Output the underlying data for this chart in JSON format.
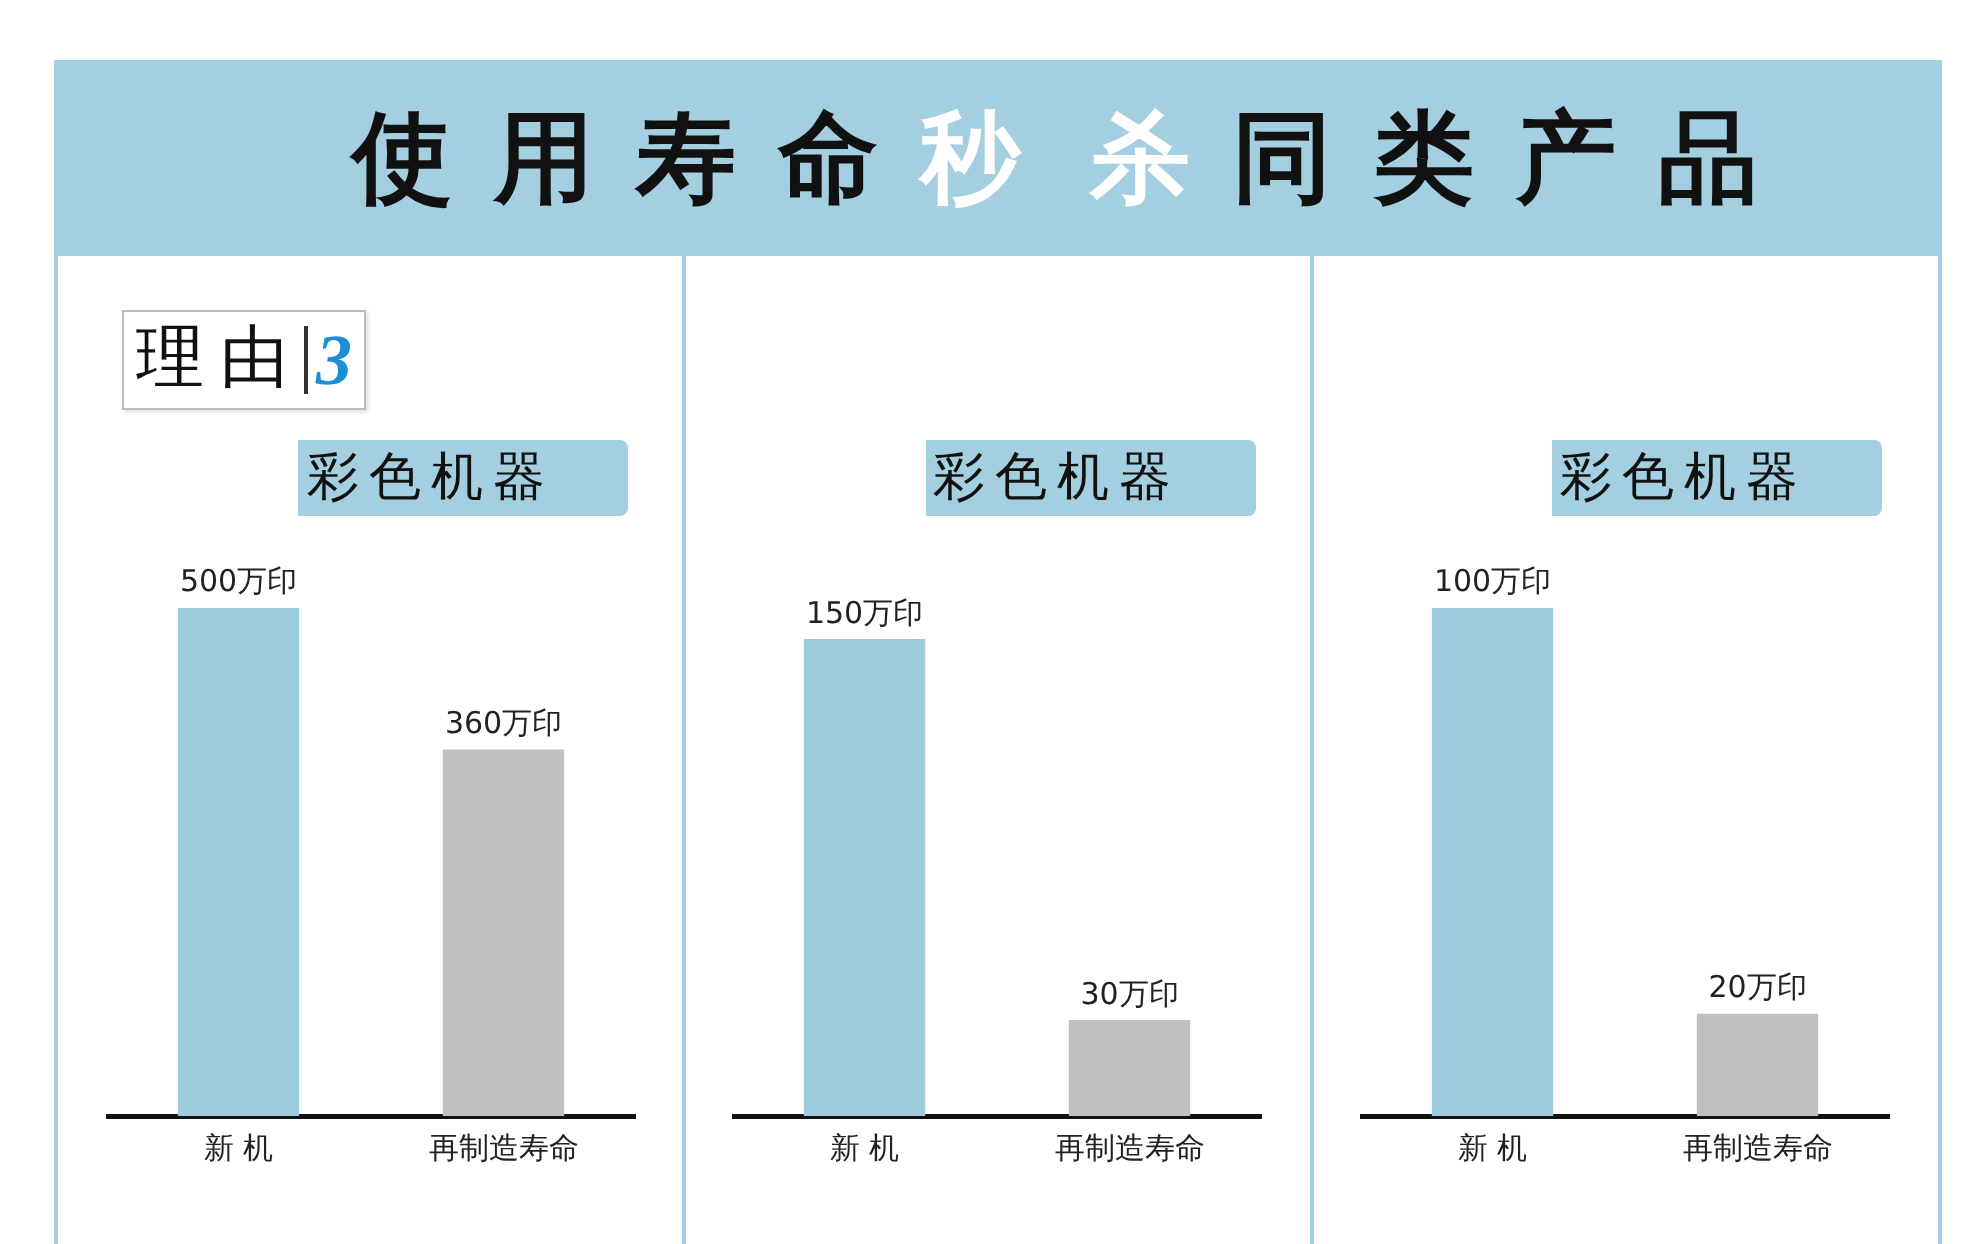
{
  "chart_data": [
    {
      "type": "other",
      "title": "使用寿命秒杀同类产品"
    },
    {
      "type": "bar",
      "title": "彩色机器",
      "annotations": [
        "理由3"
      ],
      "categories": [
        "新 机",
        "再制造寿命"
      ],
      "values": [
        500,
        360
      ],
      "colors": [
        "#9fcbdf",
        "#c0c0c0"
      ],
      "value_labels": [
        "500万印",
        "360万印"
      ],
      "tick_labels": "x"
    },
    {
      "type": "bar",
      "title": "彩色机器",
      "categories": [
        "新 机",
        "再制造寿命"
      ],
      "values": [
        150,
        30
      ],
      "colors": [
        "#9fcbdf",
        "#c0c0c0"
      ],
      "value_labels": [
        "150万印",
        "30万印"
      ],
      "tick_labels": "x"
    },
    {
      "type": "bar",
      "title": "彩色机器",
      "categories": [
        "新 机",
        "再制造寿命"
      ],
      "values": [
        100,
        20
      ],
      "colors": [
        "#9fcbdf",
        "#c0c0c0"
      ],
      "value_labels": [
        "100万印",
        "20万印"
      ],
      "tick_labels": "x"
    }
  ]
}
